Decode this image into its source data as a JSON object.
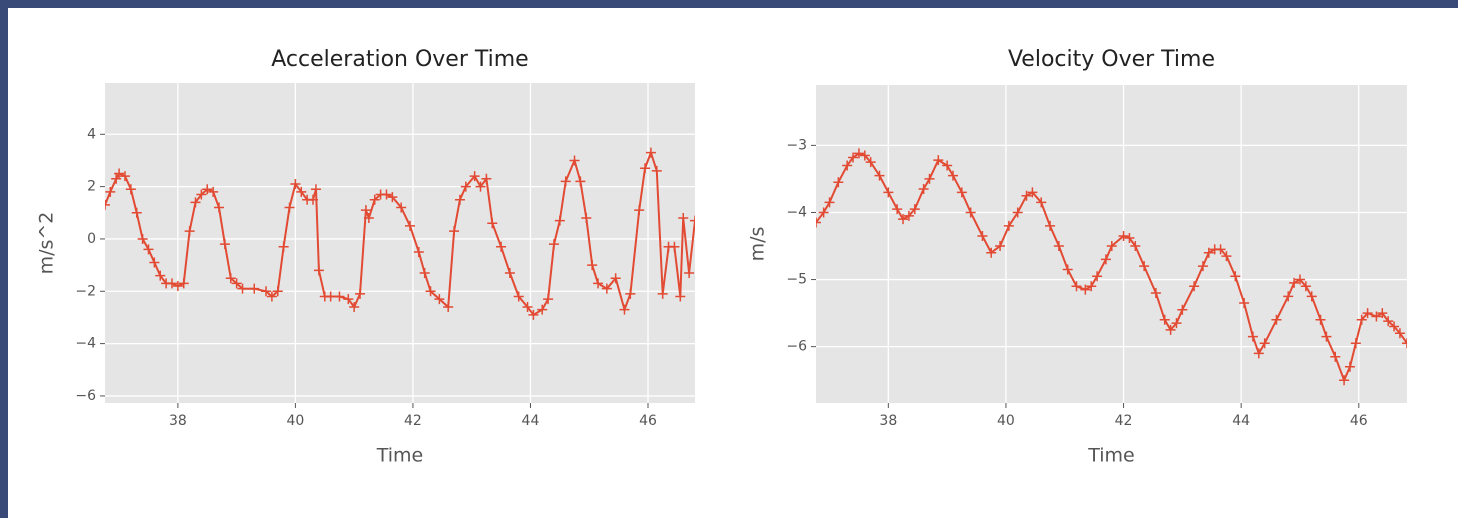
{
  "chart_data": [
    {
      "type": "line",
      "title": "Acceleration Over Time",
      "xlabel": "Time",
      "ylabel": "m/s^2",
      "color": "#e24a33",
      "x": [
        36.76,
        36.85,
        36.95,
        37.0,
        37.1,
        37.2,
        37.3,
        37.4,
        37.5,
        37.6,
        37.7,
        37.8,
        37.9,
        38.0,
        38.1,
        38.2,
        38.3,
        38.4,
        38.5,
        38.6,
        38.7,
        38.8,
        38.9,
        39.0,
        39.1,
        39.3,
        39.5,
        39.6,
        39.7,
        39.8,
        39.9,
        40.0,
        40.1,
        40.2,
        40.3,
        40.35,
        40.4,
        40.5,
        40.6,
        40.75,
        40.9,
        41.0,
        41.1,
        41.2,
        41.25,
        41.35,
        41.45,
        41.55,
        41.65,
        41.8,
        41.95,
        42.1,
        42.2,
        42.3,
        42.45,
        42.6,
        42.7,
        42.8,
        42.9,
        43.05,
        43.15,
        43.25,
        43.35,
        43.5,
        43.65,
        43.8,
        43.95,
        44.05,
        44.2,
        44.3,
        44.4,
        44.5,
        44.6,
        44.75,
        44.85,
        44.95,
        45.05,
        45.15,
        45.3,
        45.45,
        45.6,
        45.7,
        45.85,
        45.95,
        46.05,
        46.15,
        46.25,
        46.35,
        46.45,
        46.55,
        46.6,
        46.7,
        46.8
      ],
      "values": [
        1.3,
        1.8,
        2.3,
        2.5,
        2.4,
        1.9,
        1.0,
        0.0,
        -0.4,
        -0.9,
        -1.4,
        -1.7,
        -1.7,
        -1.8,
        -1.7,
        0.3,
        1.4,
        1.7,
        1.9,
        1.8,
        1.2,
        -0.2,
        -1.5,
        -1.7,
        -1.9,
        -1.9,
        -2.0,
        -2.2,
        -2.0,
        -0.3,
        1.2,
        2.1,
        1.8,
        1.5,
        1.5,
        1.9,
        -1.2,
        -2.2,
        -2.2,
        -2.2,
        -2.3,
        -2.6,
        -2.1,
        1.1,
        0.8,
        1.5,
        1.7,
        1.7,
        1.6,
        1.2,
        0.5,
        -0.5,
        -1.3,
        -2.0,
        -2.3,
        -2.6,
        0.3,
        1.5,
        2.0,
        2.4,
        2.0,
        2.3,
        0.6,
        -0.3,
        -1.3,
        -2.2,
        -2.6,
        -2.9,
        -2.7,
        -2.3,
        -0.2,
        0.7,
        2.2,
        3.0,
        2.2,
        0.8,
        -1.0,
        -1.7,
        -1.9,
        -1.5,
        -2.7,
        -2.1,
        1.1,
        2.7,
        3.3,
        2.6,
        -2.1,
        -0.3,
        -0.3,
        -2.2,
        0.8,
        -1.3,
        0.7
      ],
      "xlim": [
        36.76,
        46.8
      ],
      "ylim": [
        -6.27,
        5.96
      ],
      "xticks": [
        38,
        40,
        42,
        44,
        46
      ],
      "yticks": [
        {
          "value": -6,
          "label": "−6"
        },
        {
          "value": -4,
          "label": "−4"
        },
        {
          "value": -2,
          "label": "−2"
        },
        0,
        2,
        4
      ],
      "grid": true
    },
    {
      "type": "line",
      "title": "Velocity Over Time",
      "xlabel": "Time",
      "ylabel": "m/s",
      "color": "#e24a33",
      "x": [
        36.77,
        36.9,
        37.0,
        37.15,
        37.3,
        37.4,
        37.5,
        37.6,
        37.7,
        37.85,
        38.0,
        38.15,
        38.25,
        38.35,
        38.45,
        38.6,
        38.7,
        38.85,
        39.0,
        39.1,
        39.25,
        39.4,
        39.6,
        39.75,
        39.9,
        40.05,
        40.2,
        40.35,
        40.45,
        40.6,
        40.75,
        40.9,
        41.05,
        41.2,
        41.35,
        41.45,
        41.55,
        41.7,
        41.8,
        42.0,
        42.1,
        42.2,
        42.35,
        42.55,
        42.7,
        42.8,
        42.9,
        43.0,
        43.2,
        43.35,
        43.45,
        43.55,
        43.65,
        43.75,
        43.9,
        44.05,
        44.2,
        44.3,
        44.4,
        44.6,
        44.8,
        44.9,
        45.0,
        45.1,
        45.2,
        45.35,
        45.45,
        45.6,
        45.75,
        45.85,
        45.95,
        46.05,
        46.15,
        46.3,
        46.4,
        46.5,
        46.6,
        46.7,
        46.82
      ],
      "values": [
        -4.15,
        -4.0,
        -3.85,
        -3.55,
        -3.3,
        -3.18,
        -3.12,
        -3.15,
        -3.25,
        -3.45,
        -3.7,
        -3.95,
        -4.1,
        -4.05,
        -3.95,
        -3.65,
        -3.5,
        -3.22,
        -3.3,
        -3.45,
        -3.7,
        -4.0,
        -4.35,
        -4.6,
        -4.5,
        -4.2,
        -4.0,
        -3.75,
        -3.7,
        -3.85,
        -4.2,
        -4.5,
        -4.85,
        -5.1,
        -5.15,
        -5.1,
        -4.95,
        -4.7,
        -4.5,
        -4.35,
        -4.38,
        -4.5,
        -4.8,
        -5.2,
        -5.6,
        -5.75,
        -5.65,
        -5.45,
        -5.1,
        -4.8,
        -4.6,
        -4.55,
        -4.55,
        -4.65,
        -4.95,
        -5.35,
        -5.85,
        -6.1,
        -5.95,
        -5.6,
        -5.25,
        -5.05,
        -5.0,
        -5.1,
        -5.25,
        -5.6,
        -5.85,
        -6.15,
        -6.5,
        -6.3,
        -5.95,
        -5.6,
        -5.5,
        -5.55,
        -5.5,
        -5.62,
        -5.7,
        -5.8,
        -5.95
      ],
      "xlim": [
        36.77,
        46.82
      ],
      "ylim": [
        -6.84,
        -2.1
      ],
      "xticks": [
        38,
        40,
        42,
        44,
        46
      ],
      "yticks": [
        {
          "value": -6,
          "label": "−6"
        },
        {
          "value": -5,
          "label": "−5"
        },
        {
          "value": -4,
          "label": "−4"
        },
        {
          "value": -3,
          "label": "−3"
        }
      ],
      "grid": true
    }
  ]
}
